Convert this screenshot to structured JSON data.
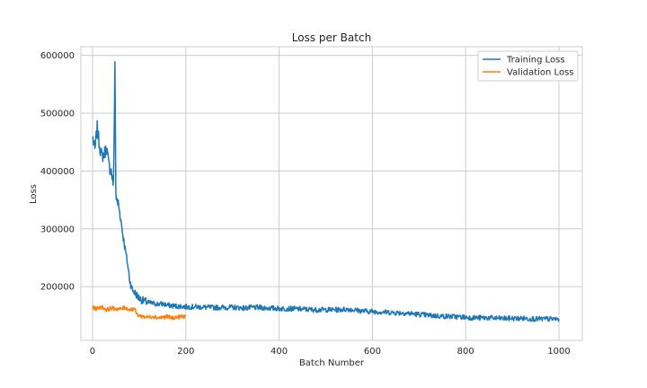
{
  "chart_data": {
    "type": "line",
    "title": "Loss per Batch",
    "xlabel": "Batch Number",
    "ylabel": "Loss",
    "xlim": [
      -25,
      1050
    ],
    "ylim": [
      107000,
      615000
    ],
    "xticks": [
      0,
      200,
      400,
      600,
      800,
      1000
    ],
    "yticks": [
      200000,
      300000,
      400000,
      500000,
      600000
    ],
    "grid": true,
    "legend_position": "top-right",
    "series": [
      {
        "name": "Training Loss",
        "color": "#1f77b4",
        "x": [
          0,
          5,
          10,
          15,
          20,
          25,
          30,
          35,
          40,
          45,
          48,
          50,
          52,
          55,
          60,
          65,
          70,
          75,
          80,
          85,
          90,
          95,
          100,
          110,
          120,
          130,
          140,
          150,
          160,
          170,
          180,
          190,
          200,
          225,
          250,
          275,
          300,
          325,
          350,
          375,
          400,
          425,
          450,
          475,
          500,
          525,
          550,
          575,
          600,
          625,
          650,
          675,
          700,
          725,
          750,
          775,
          800,
          825,
          850,
          875,
          900,
          925,
          950,
          975,
          1000
        ],
        "y": [
          460000,
          435000,
          475000,
          445000,
          425000,
          430000,
          440000,
          410000,
          400000,
          375000,
          590000,
          365000,
          345000,
          345000,
          320000,
          290000,
          265000,
          240000,
          210000,
          195000,
          190000,
          185000,
          180000,
          175000,
          172000,
          171000,
          170000,
          170000,
          168000,
          167000,
          166000,
          166000,
          165000,
          165000,
          164000,
          164000,
          164000,
          163000,
          164000,
          163000,
          162000,
          162000,
          161000,
          160000,
          160000,
          160000,
          161000,
          158000,
          157000,
          156000,
          155000,
          154000,
          152000,
          150000,
          149000,
          148000,
          147000,
          146000,
          146000,
          145000,
          145000,
          145000,
          144000,
          144000,
          144000
        ]
      },
      {
        "name": "Validation Loss",
        "color": "#ff7f0e",
        "x": [
          0,
          10,
          20,
          30,
          40,
          50,
          60,
          70,
          80,
          90,
          95,
          100,
          110,
          120,
          130,
          140,
          150,
          160,
          170,
          180,
          190,
          200
        ],
        "y": [
          163000,
          162000,
          165000,
          160000,
          163000,
          162000,
          161000,
          164000,
          160000,
          162000,
          152000,
          150000,
          148000,
          147000,
          149000,
          146000,
          147000,
          148000,
          146000,
          147000,
          148000,
          149000
        ]
      }
    ]
  }
}
